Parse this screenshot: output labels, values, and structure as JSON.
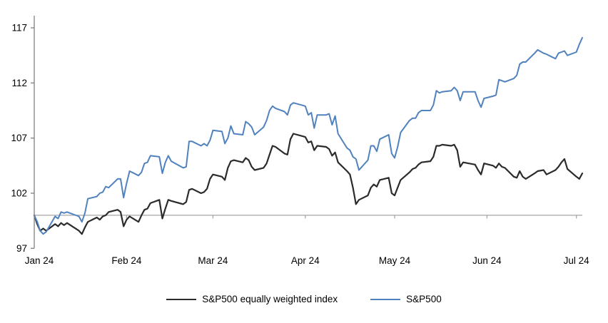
{
  "chart_data": {
    "type": "line",
    "title": "",
    "grid": "off",
    "background_color": "#ffffff",
    "axis_color": "#808080",
    "baseline_color": "#a6a6a6",
    "text_color": "#000000",
    "x_axis": {
      "tick_labels": [
        "Jan 24",
        "Feb 24",
        "Mar 24",
        "Apr 24",
        "May 24",
        "Jun 24",
        "Jul 24"
      ],
      "tick_day_offsets": [
        0,
        31,
        60,
        91,
        121,
        152,
        182
      ],
      "range_days": [
        0,
        184
      ]
    },
    "y_axis": {
      "ticks": [
        97,
        102,
        107,
        112,
        117
      ],
      "tick_labels": [
        "97",
        "102",
        "107",
        "112",
        "117"
      ],
      "range": [
        97,
        118.1
      ],
      "baseline_value": 100
    },
    "legend": {
      "position": "bottom-center",
      "entries": [
        "S&P500 equally weighted index",
        "S&P500"
      ]
    },
    "day_offsets": [
      0,
      1,
      2,
      3,
      4,
      7,
      8,
      9,
      10,
      11,
      15,
      16,
      17,
      18,
      21,
      22,
      23,
      24,
      25,
      28,
      29,
      30,
      31,
      32,
      35,
      36,
      37,
      38,
      39,
      42,
      43,
      44,
      45,
      46,
      50,
      51,
      52,
      53,
      56,
      57,
      58,
      59,
      60,
      63,
      64,
      65,
      66,
      67,
      70,
      71,
      72,
      73,
      74,
      77,
      78,
      79,
      80,
      81,
      84,
      85,
      86,
      87,
      91,
      92,
      93,
      94,
      95,
      98,
      99,
      100,
      101,
      102,
      105,
      106,
      107,
      108,
      109,
      112,
      113,
      114,
      115,
      116,
      119,
      120,
      121,
      122,
      123,
      126,
      127,
      128,
      129,
      130,
      133,
      134,
      135,
      136,
      137,
      140,
      141,
      142,
      143,
      144,
      148,
      149,
      150,
      151,
      154,
      155,
      156,
      157,
      158,
      161,
      162,
      163,
      164,
      165,
      168,
      169,
      171,
      172,
      175,
      176,
      177,
      178,
      179,
      182,
      183,
      184
    ],
    "series": [
      {
        "name": "S&P500 equally weighted index",
        "color": "#2b2b2b",
        "stroke_width": 2.2,
        "values": [
          100.0,
          99.2,
          98.6,
          98.8,
          98.6,
          99.2,
          99.0,
          99.3,
          99.1,
          99.3,
          98.6,
          98.3,
          98.9,
          99.4,
          99.8,
          99.6,
          99.9,
          100.0,
          100.3,
          100.5,
          100.3,
          99.0,
          99.6,
          99.9,
          99.4,
          100.0,
          100.5,
          100.6,
          101.1,
          101.4,
          99.7,
          100.6,
          101.4,
          101.3,
          101.0,
          101.2,
          102.3,
          102.4,
          102.0,
          102.1,
          102.4,
          103.3,
          103.7,
          103.5,
          103.2,
          104.3,
          104.9,
          105.0,
          104.8,
          105.2,
          105.0,
          104.4,
          104.1,
          104.3,
          104.7,
          105.5,
          106.3,
          106.2,
          105.6,
          105.5,
          106.9,
          107.4,
          107.1,
          106.6,
          106.7,
          105.9,
          106.3,
          106.2,
          106.0,
          105.4,
          105.7,
          104.8,
          104.0,
          103.7,
          102.5,
          101.0,
          101.4,
          101.8,
          102.5,
          102.8,
          102.6,
          103.2,
          103.4,
          102.0,
          101.8,
          102.5,
          103.2,
          103.9,
          104.2,
          104.3,
          104.6,
          104.8,
          104.9,
          105.3,
          106.3,
          106.3,
          106.4,
          106.3,
          106.4,
          105.9,
          104.4,
          104.8,
          104.6,
          104.1,
          103.7,
          104.7,
          104.5,
          104.3,
          104.7,
          104.4,
          104.3,
          103.5,
          103.4,
          104.0,
          103.5,
          103.3,
          103.8,
          104.0,
          104.1,
          103.7,
          104.1,
          104.4,
          104.8,
          105.1,
          104.2,
          103.5,
          103.3,
          103.8
        ]
      },
      {
        "name": "S&P500",
        "color": "#5082be",
        "stroke_width": 2.0,
        "values": [
          100.0,
          99.4,
          98.6,
          98.3,
          98.5,
          99.9,
          99.7,
          100.3,
          100.2,
          100.3,
          99.9,
          99.4,
          100.2,
          101.5,
          101.7,
          102.0,
          102.1,
          102.6,
          102.5,
          103.3,
          103.3,
          101.6,
          102.9,
          104.0,
          103.6,
          103.9,
          104.7,
          104.8,
          105.4,
          105.3,
          103.8,
          104.8,
          105.4,
          104.9,
          104.3,
          104.4,
          106.7,
          106.7,
          106.3,
          106.5,
          106.3,
          106.8,
          107.7,
          107.6,
          106.5,
          107.0,
          108.1,
          107.4,
          107.3,
          108.5,
          108.3,
          108.0,
          107.3,
          108.0,
          108.6,
          109.5,
          109.9,
          109.7,
          109.4,
          109.1,
          110.0,
          110.2,
          109.9,
          109.1,
          109.3,
          107.9,
          109.1,
          109.1,
          109.2,
          108.2,
          109.0,
          107.4,
          106.1,
          105.9,
          105.3,
          105.1,
          104.1,
          105.0,
          106.3,
          106.3,
          105.8,
          106.9,
          107.3,
          105.6,
          105.2,
          106.2,
          107.5,
          108.6,
          108.8,
          108.8,
          109.3,
          109.5,
          109.5,
          110.0,
          111.3,
          111.1,
          111.2,
          111.3,
          111.6,
          111.3,
          110.4,
          111.2,
          111.2,
          110.4,
          109.8,
          110.6,
          110.8,
          110.9,
          112.3,
          112.2,
          112.1,
          112.4,
          112.7,
          113.7,
          113.9,
          113.9,
          114.7,
          115.0,
          114.7,
          114.6,
          114.2,
          114.7,
          114.8,
          114.9,
          114.5,
          114.8,
          115.5,
          116.1
        ]
      }
    ]
  }
}
